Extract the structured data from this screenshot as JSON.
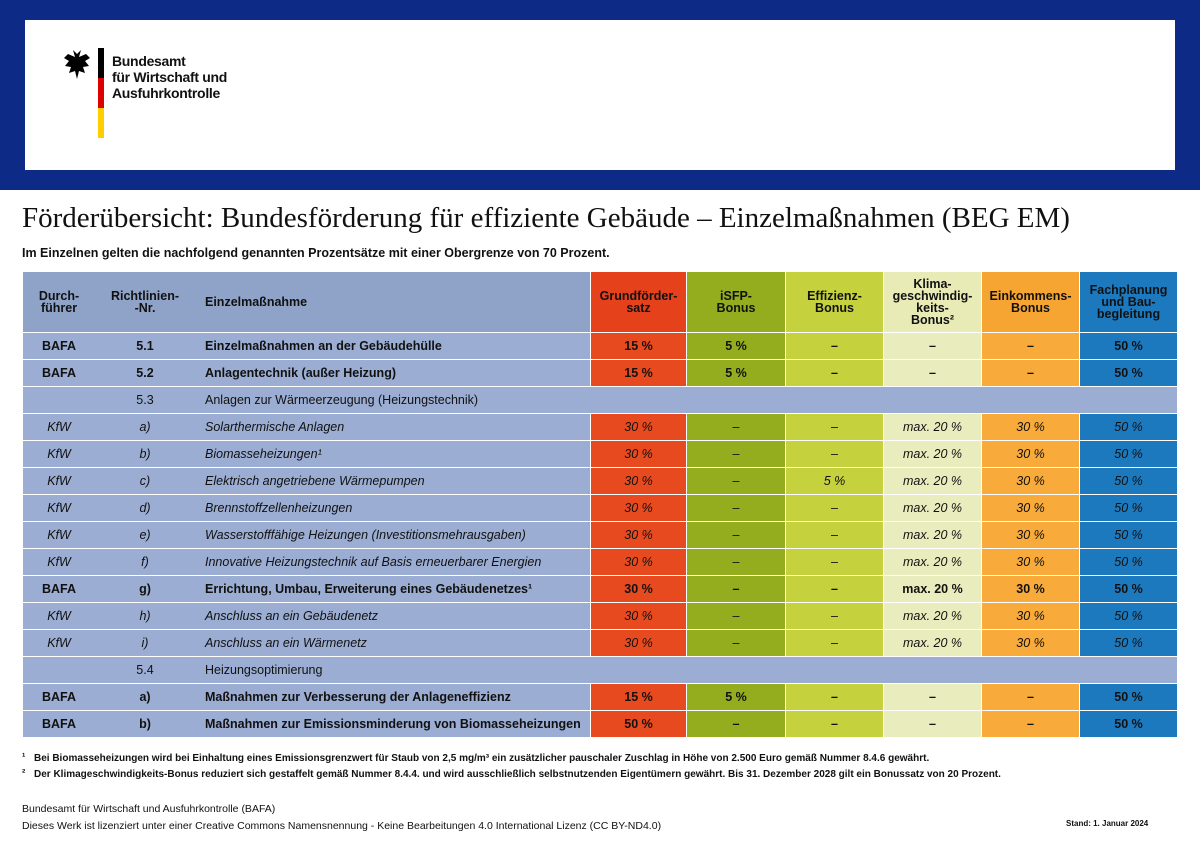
{
  "header": {
    "org_lines": [
      "Bundesamt",
      "für Wirtschaft und",
      "Ausfuhrkontrolle"
    ]
  },
  "title": "Förderübersicht: Bundesförderung für effiziente Gebäude – Einzelmaßnahmen (BEG EM)",
  "subtitle": "Im Einzelnen gelten die nachfolgend genannten Prozentsätze mit einer Obergrenze von 70 Prozent.",
  "table": {
    "columns": [
      "Durch-\nführer",
      "Richtlinien-\n-Nr.",
      "Einzelmaßnahme",
      "Grundförder-\nsatz",
      "iSFP-\nBonus",
      "Effizienz-\nBonus",
      "Klima-\ngeschwindig-\nkeits-\nBonus²",
      "Einkommens-\nBonus",
      "Fachplanung\nund Bau-\nbegleitung"
    ],
    "rows": [
      [
        "BAFA",
        "5.1",
        "Einzelmaßnahmen an der Gebäudehülle",
        "15 %",
        "5 %",
        "–",
        "–",
        "–",
        "50 %"
      ],
      [
        "BAFA",
        "5.2",
        "Anlagentechnik (außer Heizung)",
        "15 %",
        "5 %",
        "–",
        "–",
        "–",
        "50 %"
      ],
      [
        "5.3",
        "Anlagen zur Wärmeerzeugung (Heizungstechnik)"
      ],
      [
        "KfW",
        "a)",
        "Solarthermische Anlagen",
        "30 %",
        "–",
        "–",
        "max. 20 %",
        "30 %",
        "50 %"
      ],
      [
        "KfW",
        "b)",
        "Biomasseheizungen¹",
        "30 %",
        "–",
        "–",
        "max. 20 %",
        "30 %",
        "50 %"
      ],
      [
        "KfW",
        "c)",
        "Elektrisch angetriebene Wärmepumpen",
        "30 %",
        "–",
        "5 %",
        "max. 20 %",
        "30 %",
        "50 %"
      ],
      [
        "KfW",
        "d)",
        "Brennstoffzellenheizungen",
        "30 %",
        "–",
        "–",
        "max. 20 %",
        "30 %",
        "50 %"
      ],
      [
        "KfW",
        "e)",
        "Wasserstofffähige Heizungen (Investitionsmehrausgaben)",
        "30 %",
        "–",
        "–",
        "max. 20 %",
        "30 %",
        "50 %"
      ],
      [
        "KfW",
        "f)",
        "Innovative Heizungstechnik auf Basis erneuerbarer Energien",
        "30 %",
        "–",
        "–",
        "max. 20 %",
        "30 %",
        "50 %"
      ],
      [
        "BAFA",
        "g)",
        "Errichtung, Umbau, Erweiterung eines Gebäudenetzes¹",
        "30 %",
        "–",
        "–",
        "max. 20 %",
        "30 %",
        "50 %"
      ],
      [
        "KfW",
        "h)",
        "Anschluss an ein Gebäudenetz",
        "30 %",
        "–",
        "–",
        "max. 20 %",
        "30 %",
        "50 %"
      ],
      [
        "KfW",
        "i)",
        "Anschluss an ein Wärmenetz",
        "30 %",
        "–",
        "–",
        "max. 20 %",
        "30 %",
        "50 %"
      ],
      [
        "5.4",
        "Heizungsoptimierung"
      ],
      [
        "BAFA",
        "a)",
        "Maßnahmen zur Verbesserung der Anlageneffizienz",
        "15 %",
        "5 %",
        "–",
        "–",
        "–",
        "50 %"
      ],
      [
        "BAFA",
        "b)",
        "Maßnahmen zur Emissionsminderung von Biomasseheizungen",
        "50 %",
        "–",
        "–",
        "–",
        "–",
        "50 %"
      ]
    ]
  },
  "footnotes": [
    {
      "mark": "¹",
      "text": "Bei Biomasseheizungen wird bei Einhaltung eines Emissionsgrenzwert für Staub von 2,5 mg/m³ ein zusätzlicher pauschaler Zuschlag in Höhe von 2.500 Euro gemäß Nummer 8.4.6 gewährt."
    },
    {
      "mark": "²",
      "text": "Der Klimageschwindigkeits-Bonus reduziert sich gestaffelt gemäß Nummer 8.4.4. und wird ausschließlich selbstnutzenden Eigentümern gewährt. Bis 31. Dezember 2028 gilt ein Bonussatz von 20 Prozent."
    }
  ],
  "footer": {
    "org": "Bundesamt für Wirtschaft und Ausfuhrkontrolle (BAFA)",
    "license": "Dieses Werk ist lizenziert unter einer Creative Commons Namensnennung - Keine Bearbeitungen 4.0 International Lizenz (CC BY-ND4.0)",
    "date": "Stand: 1. Januar 2024"
  }
}
